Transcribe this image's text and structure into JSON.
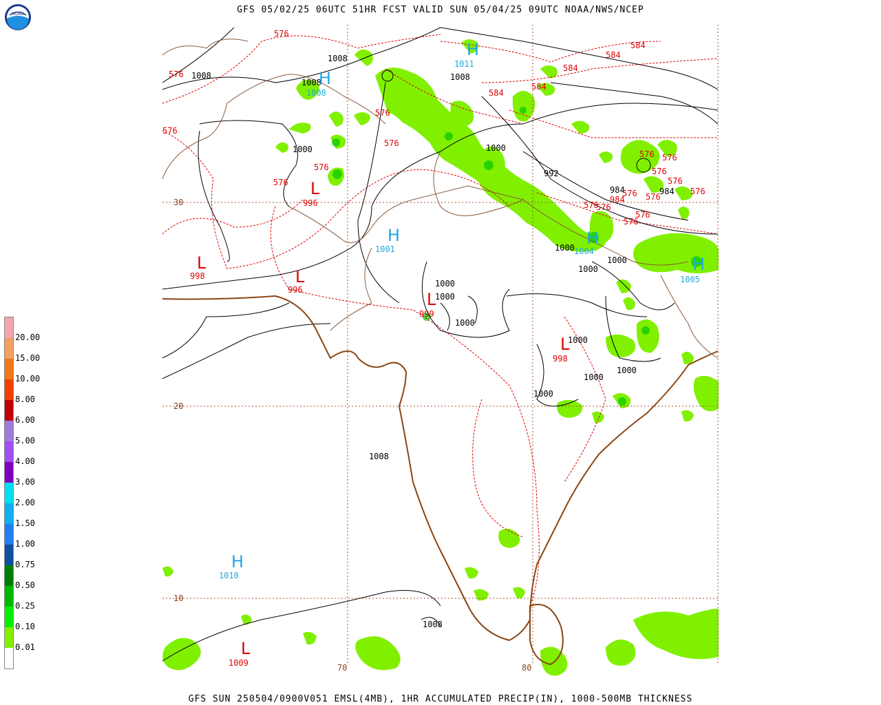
{
  "header": {
    "title": "GFS 05/02/25 06UTC 51HR FCST VALID SUN 05/04/25 09UTC NOAA/NWS/NCEP"
  },
  "footer": {
    "caption": "GFS SUN 250504/0900V051 EMSL(4MB), 1HR ACCUMULATED PRECIP(IN), 1000-500MB THICKNESS"
  },
  "logo": {
    "icon": "noaa-logo",
    "text": "NOAA"
  },
  "legend": {
    "labels": [
      "20.00",
      "15.00",
      "10.00",
      "8.00",
      "6.00",
      "5.00",
      "4.00",
      "3.00",
      "2.00",
      "1.50",
      "1.00",
      "0.75",
      "0.50",
      "0.25",
      "0.10",
      "0.01"
    ],
    "colors": [
      "#f4a6b0",
      "#f4a060",
      "#f07818",
      "#f04000",
      "#c00000",
      "#9c7cd8",
      "#a050f0",
      "#8000c0",
      "#00e0f0",
      "#10b0f0",
      "#2080f0",
      "#1050a0",
      "#008000",
      "#00b800",
      "#00f000",
      "#80f000",
      "#ffffff"
    ]
  },
  "grid": {
    "lat_labels": [
      "30",
      "20",
      "10"
    ],
    "lon_labels": [
      "70",
      "80"
    ]
  },
  "pressure_centers": [
    {
      "type": "H",
      "value": "1011",
      "color": "#20a8e0"
    },
    {
      "type": "H",
      "value": "1008",
      "color": "#20a8e0"
    },
    {
      "type": "H",
      "value": "1001",
      "color": "#20a8e0"
    },
    {
      "type": "H",
      "value": "1004",
      "color": "#20a8e0"
    },
    {
      "type": "H",
      "value": "1005",
      "color": "#20a8e0"
    },
    {
      "type": "H",
      "value": "1010",
      "color": "#20a8e0"
    },
    {
      "type": "L",
      "value": "996",
      "color": "#e00000"
    },
    {
      "type": "L",
      "value": "998",
      "color": "#e00000"
    },
    {
      "type": "L",
      "value": "996",
      "color": "#e00000"
    },
    {
      "type": "L",
      "value": "999",
      "color": "#e00000"
    },
    {
      "type": "L",
      "value": "998",
      "color": "#e00000"
    },
    {
      "type": "L",
      "value": "1009",
      "color": "#e00000"
    },
    {
      "type": "L",
      "value": "984",
      "color": "#e00000"
    }
  ],
  "isobar_labels": [
    "1008",
    "1008",
    "1008",
    "1008",
    "1000",
    "1000",
    "1000",
    "1000",
    "1000",
    "1000",
    "1000",
    "1000",
    "1000",
    "1000",
    "1000",
    "1000",
    "992",
    "984",
    "984",
    "1008",
    "1008"
  ],
  "thickness_labels": [
    "576",
    "576",
    "576",
    "576",
    "576",
    "576",
    "576",
    "576",
    "584",
    "584",
    "584",
    "584",
    "584",
    "576",
    "576",
    "576",
    "576",
    "576",
    "576",
    "576",
    "576",
    "576",
    "576"
  ]
}
